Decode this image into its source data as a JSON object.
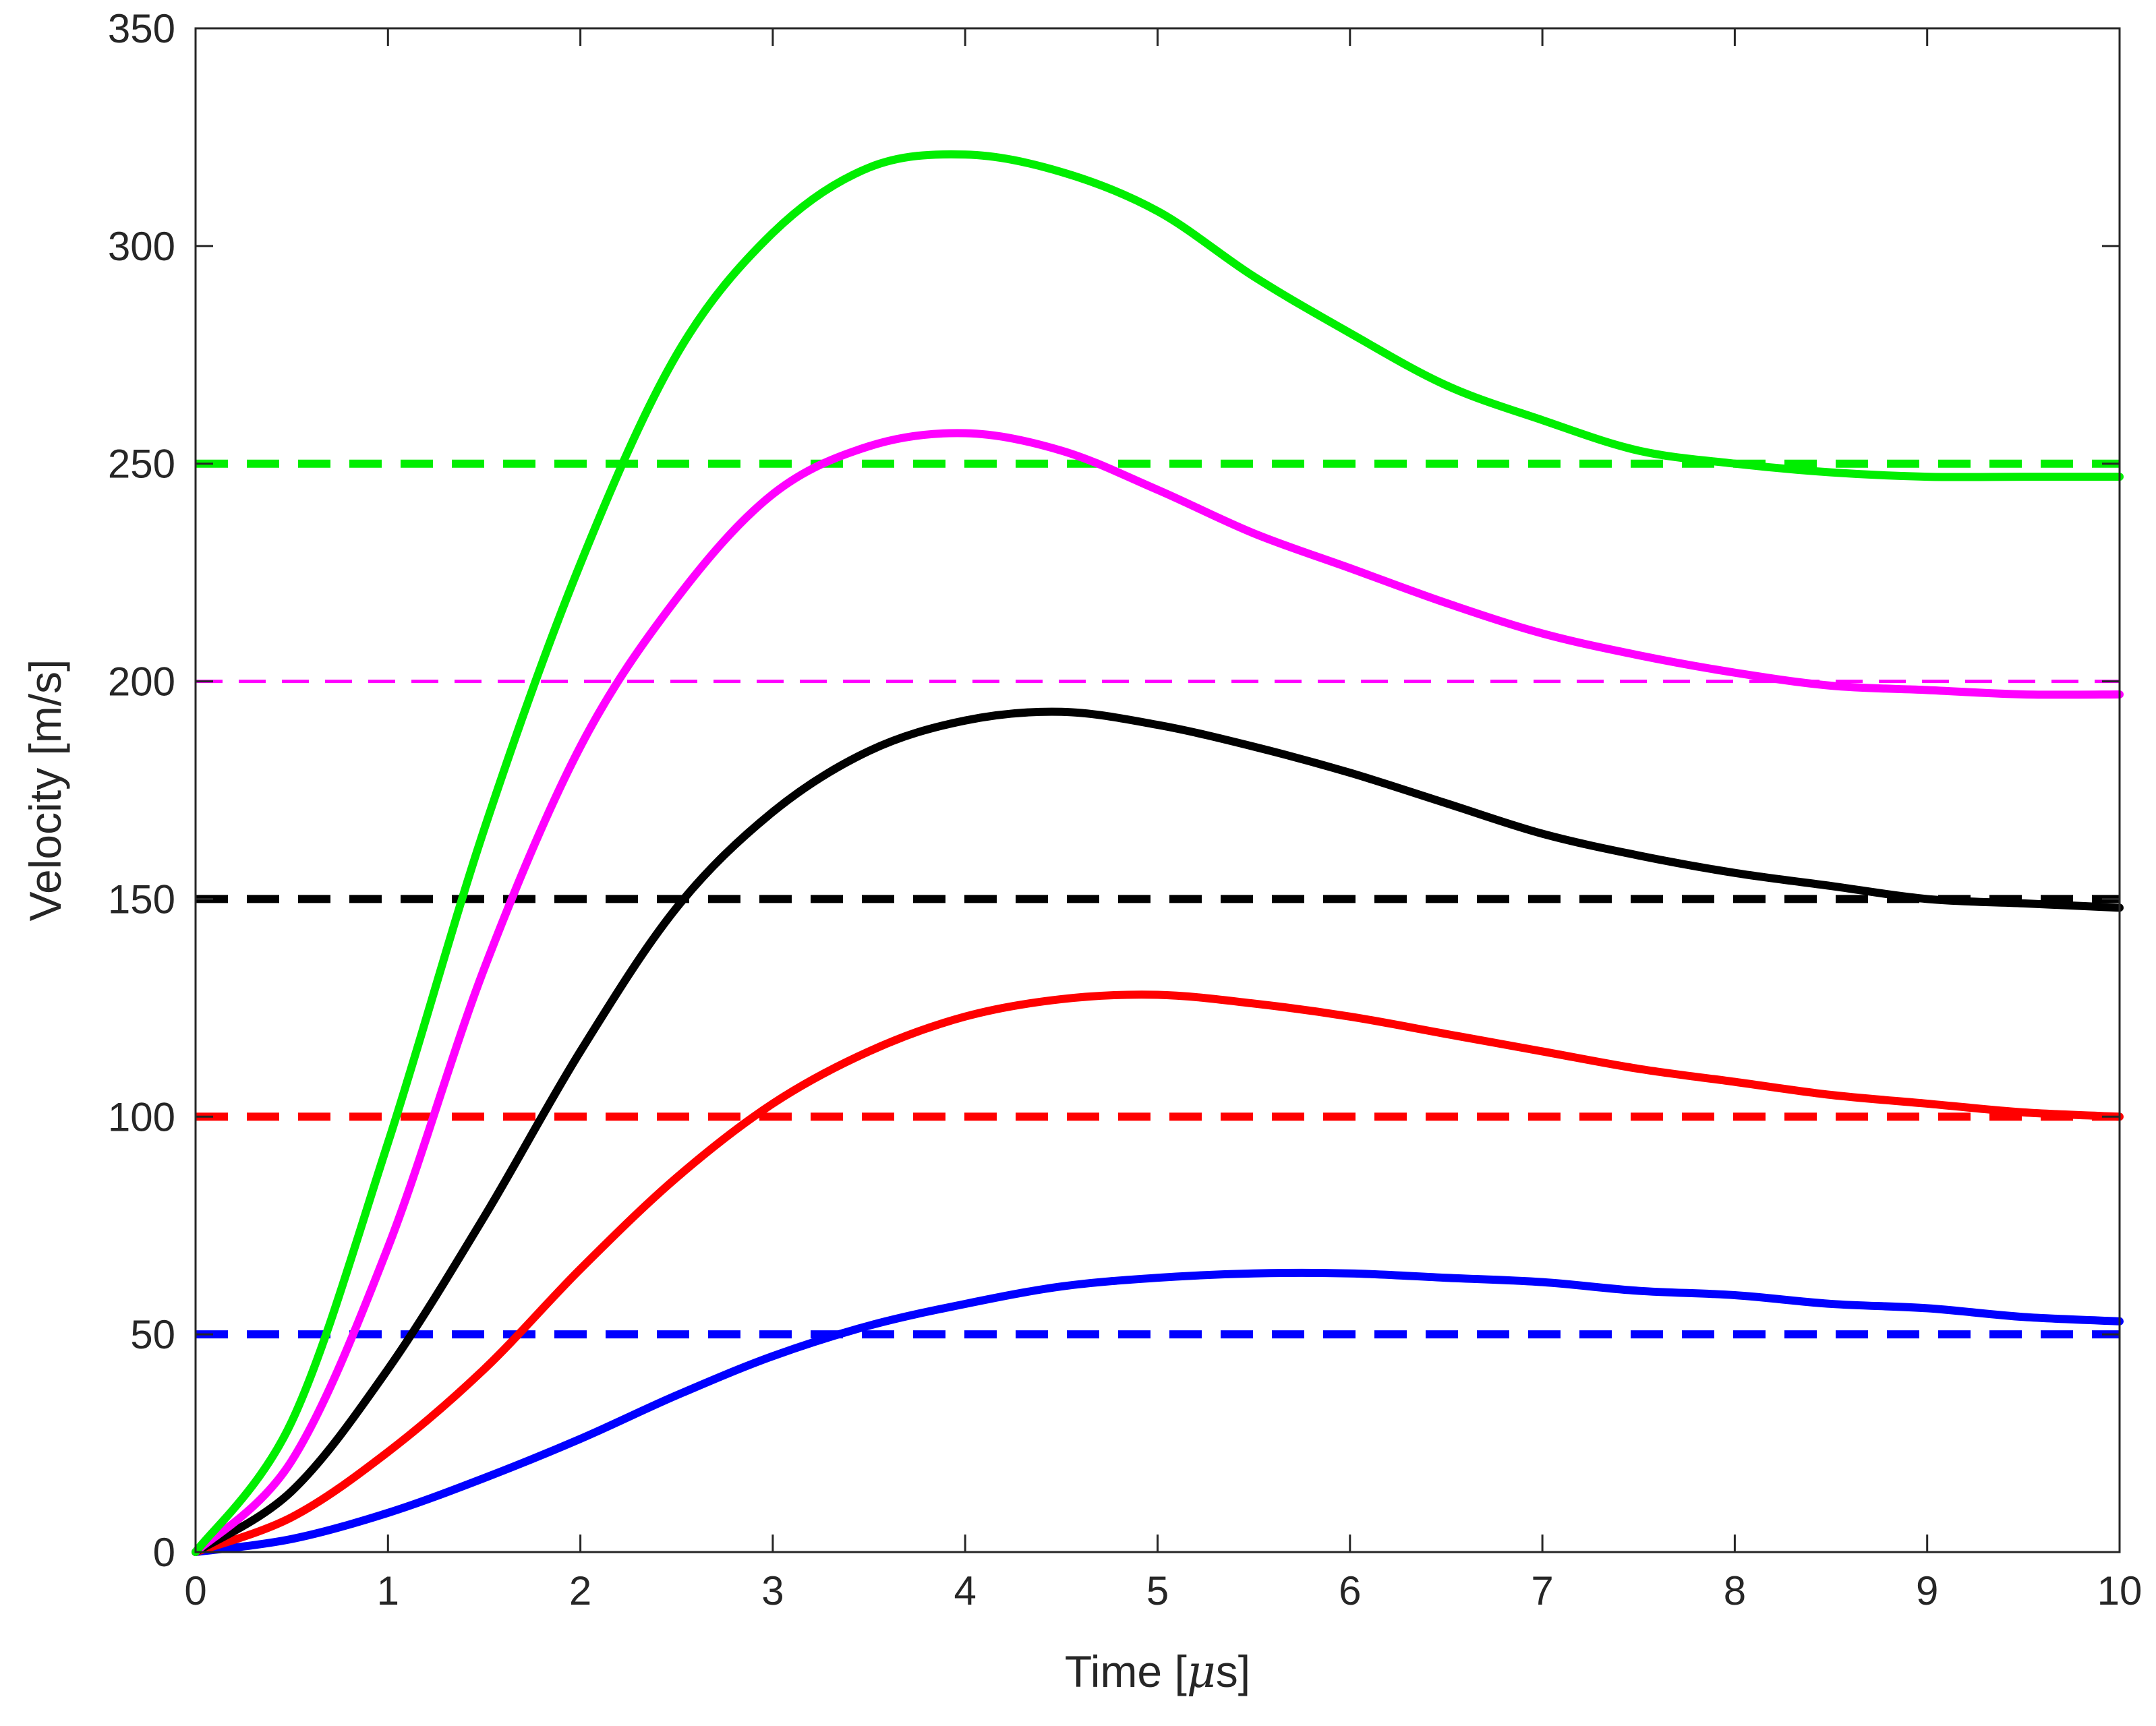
{
  "chart_data": {
    "type": "line",
    "title": "",
    "xlabel": "Time [",
    "xlabel_mu": "μ",
    "xlabel_suffix": "s]",
    "ylabel": "Velocity [m/s]",
    "xlim": [
      0,
      10
    ],
    "ylim": [
      0,
      350
    ],
    "xticks": [
      0,
      1,
      2,
      3,
      4,
      5,
      6,
      7,
      8,
      9,
      10
    ],
    "yticks": [
      0,
      50,
      100,
      150,
      200,
      250,
      300,
      350
    ],
    "grid": false,
    "legend": "none",
    "series": [
      {
        "color": "#0000ff",
        "style": "solid",
        "x": [
          0,
          0.5,
          1,
          1.5,
          2,
          2.5,
          3,
          3.5,
          4,
          4.5,
          5,
          5.5,
          6,
          6.5,
          7,
          7.5,
          8,
          8.5,
          9,
          9.5,
          10
        ],
        "y": [
          0,
          3,
          9,
          17,
          26,
          36,
          45,
          52,
          57,
          61,
          63,
          64,
          64,
          63,
          62,
          60,
          59,
          57,
          56,
          54,
          53
        ]
      },
      {
        "color": "#0000ff",
        "style": "dashed",
        "x": [
          0,
          10
        ],
        "y": [
          50,
          50
        ]
      },
      {
        "color": "#ff0000",
        "style": "solid",
        "x": [
          0,
          0.5,
          1,
          1.5,
          2,
          2.5,
          3,
          3.5,
          4,
          4.5,
          5,
          5.5,
          6,
          6.5,
          7,
          7.5,
          8,
          8.5,
          9,
          9.5,
          10
        ],
        "y": [
          0,
          8,
          23,
          42,
          65,
          86,
          103,
          115,
          123,
          127,
          128,
          126,
          123,
          119,
          115,
          111,
          108,
          105,
          103,
          101,
          100
        ]
      },
      {
        "color": "#ff0000",
        "style": "dashed",
        "x": [
          0,
          10
        ],
        "y": [
          100,
          100
        ]
      },
      {
        "color": "#000000",
        "style": "solid",
        "x": [
          0,
          0.5,
          1,
          1.5,
          2,
          2.5,
          3,
          3.5,
          4,
          4.5,
          5,
          5.5,
          6,
          6.5,
          7,
          7.5,
          8,
          8.5,
          9,
          9.5,
          10
        ],
        "y": [
          0,
          14,
          42,
          77,
          115,
          148,
          170,
          184,
          191,
          193,
          190,
          185,
          179,
          172,
          165,
          160,
          156,
          153,
          150,
          149,
          148
        ]
      },
      {
        "color": "#000000",
        "style": "dashed",
        "x": [
          0,
          10
        ],
        "y": [
          150,
          150
        ]
      },
      {
        "color": "#ff00ff",
        "style": "solid",
        "x": [
          0,
          0.5,
          1,
          1.5,
          2,
          2.5,
          3,
          3.5,
          4,
          4.5,
          5,
          5.5,
          6,
          6.5,
          7,
          7.5,
          8,
          8.5,
          9,
          9.5,
          10
        ],
        "y": [
          0,
          21,
          70,
          134,
          185,
          219,
          243,
          254,
          257,
          253,
          244,
          234,
          226,
          218,
          211,
          206,
          202,
          199,
          198,
          197,
          197
        ]
      },
      {
        "color": "#ff00ff",
        "style": "dashed",
        "x": [
          0,
          10
        ],
        "y": [
          200,
          200
        ]
      },
      {
        "color": "#00ee00",
        "style": "solid",
        "x": [
          0,
          0.5,
          1,
          1.5,
          2,
          2.5,
          3,
          3.5,
          4,
          4.5,
          5,
          5.5,
          6,
          6.5,
          7,
          7.5,
          8,
          8.5,
          9,
          9.5,
          10
        ],
        "y": [
          0,
          30,
          94,
          166,
          227,
          275,
          303,
          318,
          321,
          317,
          308,
          293,
          280,
          268,
          260,
          253,
          250,
          248,
          247,
          247,
          247
        ]
      },
      {
        "color": "#00ee00",
        "style": "dashed",
        "x": [
          0,
          10
        ],
        "y": [
          250,
          250
        ]
      }
    ]
  }
}
